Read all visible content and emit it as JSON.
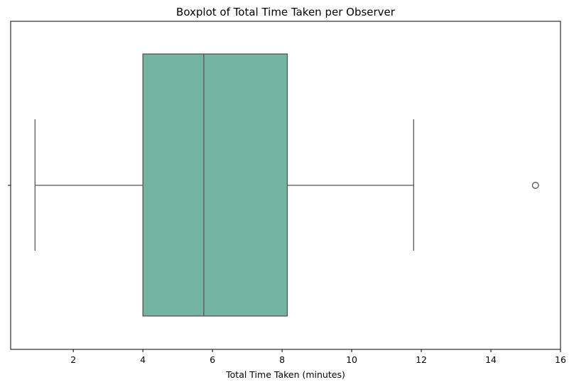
{
  "chart_data": {
    "type": "boxplot",
    "orientation": "horizontal",
    "title": "Boxplot of Total Time Taken per Observer",
    "xlabel": "Total Time Taken (minutes)",
    "ylabel": "",
    "xlim": [
      0.2,
      16
    ],
    "xticks": [
      2,
      4,
      6,
      8,
      10,
      12,
      14,
      16
    ],
    "grid": false,
    "box": {
      "whisker_low": 0.9,
      "q1": 4.0,
      "median": 5.75,
      "q3": 8.15,
      "whisker_high": 11.78,
      "outliers": [
        15.28
      ]
    },
    "colors": {
      "box_fill": "#73b5a0",
      "line": "#555555",
      "axis": "#000000"
    }
  }
}
